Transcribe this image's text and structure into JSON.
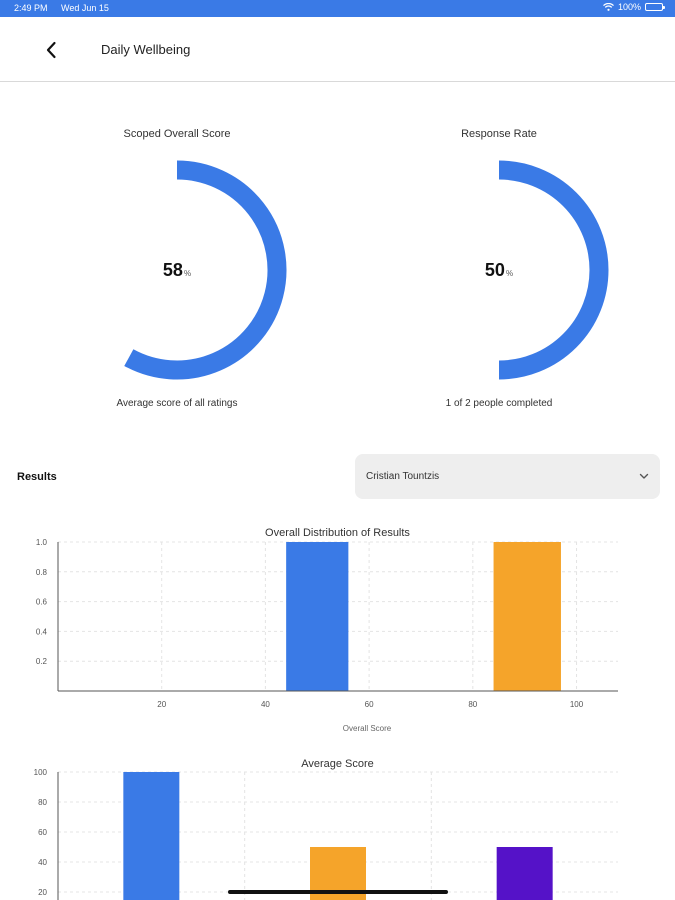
{
  "status_bar": {
    "time": "2:49 PM",
    "date": "Wed Jun 15",
    "battery": "100%"
  },
  "header": {
    "title": "Daily Wellbeing"
  },
  "gauges": [
    {
      "title": "Scoped Overall Score",
      "value": "58",
      "unit": "%",
      "fraction": 0.58,
      "caption": "Average score of all ratings"
    },
    {
      "title": "Response Rate",
      "value": "50",
      "unit": "%",
      "fraction": 0.5,
      "caption": "1 of 2 people completed"
    }
  ],
  "results": {
    "label": "Results",
    "selected_user": "Cristian Tountzis"
  },
  "colors": {
    "accent": "#3a7ae6",
    "orange": "#f5a42a",
    "purple": "#5512c8"
  },
  "chart_data": [
    {
      "type": "bar",
      "title": "Overall Distribution of Results",
      "xlabel": "Overall Score",
      "ylabel": "",
      "xlim": [
        0,
        108
      ],
      "ylim": [
        0,
        1
      ],
      "x_ticks": [
        "20",
        "40",
        "60",
        "80",
        "100"
      ],
      "y_ticks": [
        "0.2",
        "0.4",
        "0.6",
        "0.8",
        "1.0"
      ],
      "bars": [
        {
          "x0": 44,
          "x1": 56,
          "value": 1.0,
          "color": "#3a7ae6"
        },
        {
          "x0": 84,
          "x1": 97,
          "value": 1.0,
          "color": "#f5a42a"
        }
      ]
    },
    {
      "type": "bar",
      "title": "Average Score",
      "ylim": [
        0,
        100
      ],
      "y_ticks": [
        "20",
        "40",
        "60",
        "80",
        "100"
      ],
      "values": [
        100,
        50,
        50
      ],
      "colors": [
        "#3a7ae6",
        "#f5a42a",
        "#5512c8"
      ]
    }
  ]
}
